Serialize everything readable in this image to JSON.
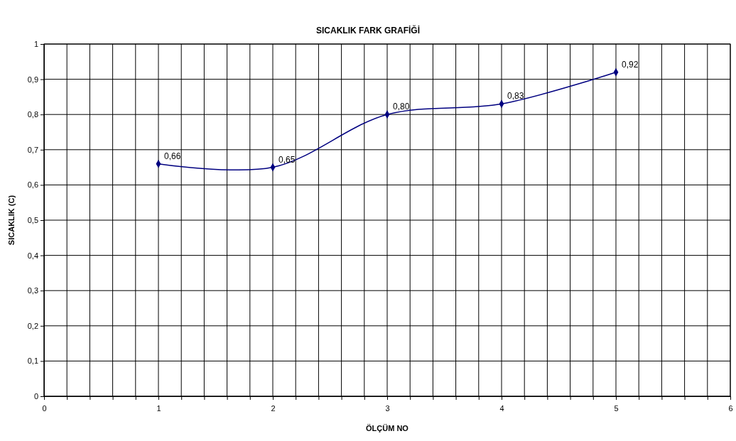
{
  "chart_data": {
    "type": "line",
    "title": "SICAKLIK FARK GRAFİĞİ",
    "xlabel": "ÖLÇÜM NO",
    "ylabel": "SICAKLIK (C)",
    "x": [
      1,
      2,
      3,
      4,
      5
    ],
    "series": [
      {
        "color": "#000080",
        "values": [
          0.66,
          0.65,
          0.8,
          0.83,
          0.92
        ],
        "value_labels": [
          "0,66",
          "0,65",
          "0,80",
          "0,83",
          "0,92"
        ]
      }
    ],
    "xlim": [
      0,
      6
    ],
    "xticks": [
      0,
      {
        "value": 0.2,
        "label": null
      },
      {
        "value": 0.4,
        "label": null
      },
      {
        "value": 0.6,
        "label": null
      },
      {
        "value": 0.8,
        "label": null
      },
      1,
      {
        "value": 1.2,
        "label": null
      },
      {
        "value": 1.4,
        "label": null
      },
      {
        "value": 1.6,
        "label": null
      },
      {
        "value": 1.8,
        "label": null
      },
      2,
      {
        "value": 2.2,
        "label": null
      },
      {
        "value": 2.4,
        "label": null
      },
      {
        "value": 2.6,
        "label": null
      },
      {
        "value": 2.8,
        "label": null
      },
      3,
      {
        "value": 3.2,
        "label": null
      },
      {
        "value": 3.4,
        "label": null
      },
      {
        "value": 3.6,
        "label": null
      },
      {
        "value": 3.8,
        "label": null
      },
      4,
      {
        "value": 4.2,
        "label": null
      },
      {
        "value": 4.4,
        "label": null
      },
      {
        "value": 4.6,
        "label": null
      },
      {
        "value": 4.8,
        "label": null
      },
      5,
      {
        "value": 5.2,
        "label": null
      },
      {
        "value": 5.4,
        "label": null
      },
      {
        "value": 5.6,
        "label": null
      },
      {
        "value": 5.8,
        "label": null
      },
      6
    ],
    "ylim": [
      0,
      1
    ],
    "yticks": [
      0,
      {
        "value": 0.1,
        "label": "0,1"
      },
      {
        "value": 0.2,
        "label": "0,2"
      },
      {
        "value": 0.3,
        "label": "0,3"
      },
      {
        "value": 0.4,
        "label": "0,4"
      },
      {
        "value": 0.5,
        "label": "0,5"
      },
      {
        "value": 0.6,
        "label": "0,6"
      },
      {
        "value": 0.7,
        "label": "0,7"
      },
      {
        "value": 0.8,
        "label": "0,8"
      },
      {
        "value": 0.9,
        "label": "0,9"
      },
      1
    ],
    "grid": true,
    "marker": "diamond",
    "line_style": "solid"
  }
}
